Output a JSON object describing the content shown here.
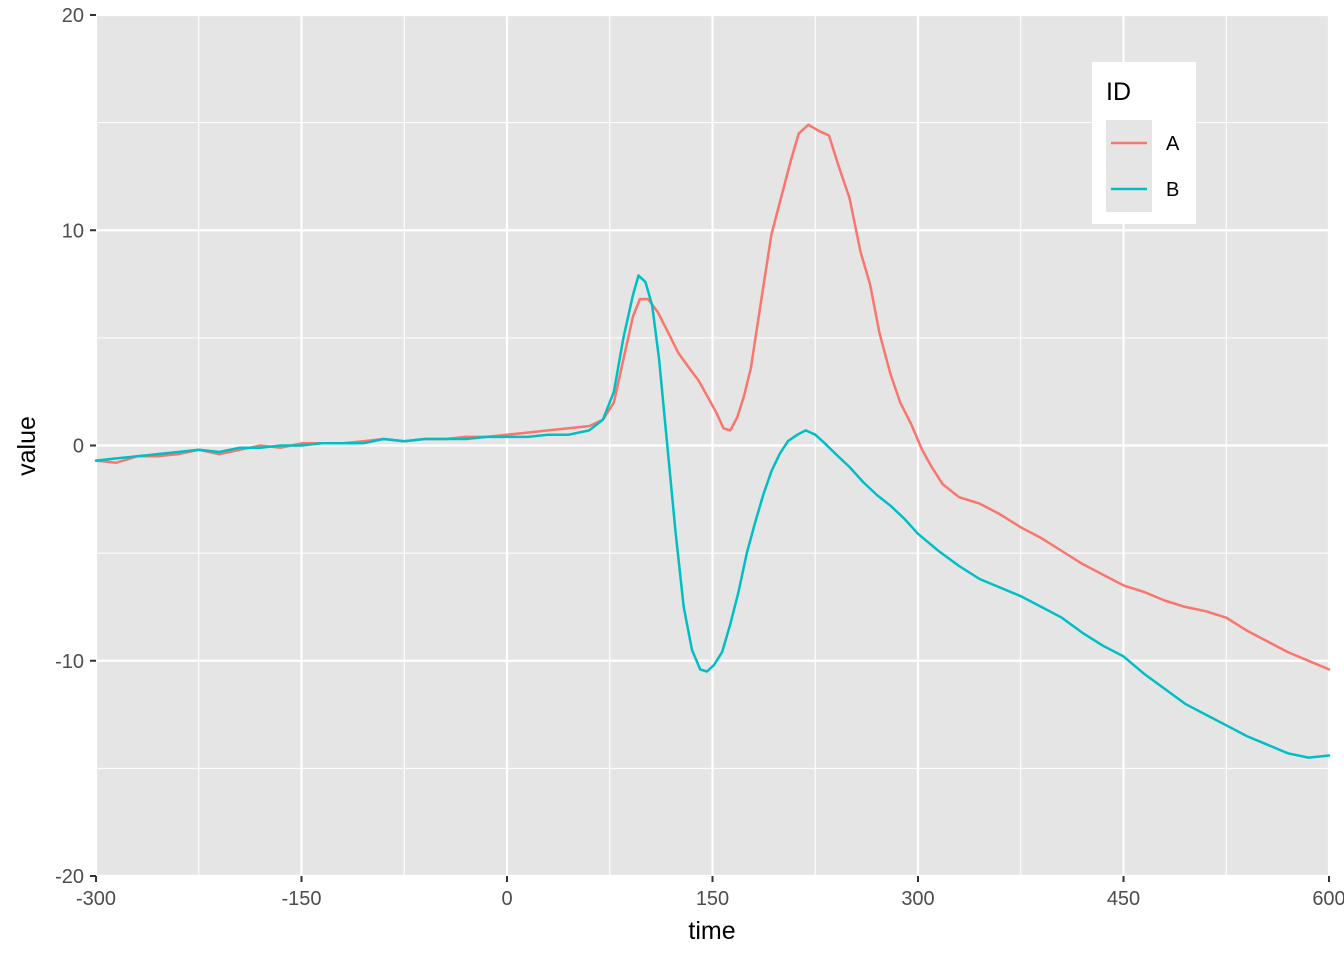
{
  "chart_data": {
    "type": "line",
    "xlabel": "time",
    "ylabel": "value",
    "xlim": [
      -300,
      600
    ],
    "ylim": [
      -20,
      20
    ],
    "x_ticks": [
      -300,
      -150,
      0,
      150,
      300,
      450,
      600
    ],
    "y_ticks": [
      -20,
      -10,
      0,
      10,
      20
    ],
    "x_tick_labels": [
      "-300",
      "-150",
      "0",
      "150",
      "300",
      "450",
      "600"
    ],
    "y_tick_labels": [
      "-20",
      "-10",
      "0",
      "10",
      "20"
    ],
    "grid": true,
    "legend": {
      "title": "ID",
      "position": "top-right",
      "entries": [
        "A",
        "B"
      ]
    },
    "series": [
      {
        "name": "A",
        "color": "#F8766D",
        "points": [
          [
            -300,
            -0.7
          ],
          [
            -285,
            -0.8
          ],
          [
            -270,
            -0.5
          ],
          [
            -255,
            -0.5
          ],
          [
            -240,
            -0.4
          ],
          [
            -225,
            -0.2
          ],
          [
            -210,
            -0.4
          ],
          [
            -195,
            -0.2
          ],
          [
            -180,
            0.0
          ],
          [
            -165,
            -0.1
          ],
          [
            -150,
            0.1
          ],
          [
            -135,
            0.1
          ],
          [
            -120,
            0.1
          ],
          [
            -105,
            0.2
          ],
          [
            -90,
            0.3
          ],
          [
            -75,
            0.2
          ],
          [
            -60,
            0.3
          ],
          [
            -45,
            0.3
          ],
          [
            -30,
            0.4
          ],
          [
            -15,
            0.4
          ],
          [
            0,
            0.5
          ],
          [
            15,
            0.6
          ],
          [
            30,
            0.7
          ],
          [
            45,
            0.8
          ],
          [
            60,
            0.9
          ],
          [
            70,
            1.2
          ],
          [
            78,
            2.0
          ],
          [
            85,
            4.0
          ],
          [
            92,
            6.0
          ],
          [
            97,
            6.8
          ],
          [
            103,
            6.8
          ],
          [
            110,
            6.2
          ],
          [
            118,
            5.2
          ],
          [
            125,
            4.3
          ],
          [
            133,
            3.6
          ],
          [
            140,
            3.0
          ],
          [
            147,
            2.2
          ],
          [
            153,
            1.5
          ],
          [
            158,
            0.8
          ],
          [
            163,
            0.7
          ],
          [
            168,
            1.3
          ],
          [
            173,
            2.3
          ],
          [
            178,
            3.6
          ],
          [
            185,
            6.5
          ],
          [
            193,
            9.8
          ],
          [
            200,
            11.5
          ],
          [
            207,
            13.2
          ],
          [
            213,
            14.5
          ],
          [
            220,
            14.9
          ],
          [
            228,
            14.6
          ],
          [
            235,
            14.4
          ],
          [
            242,
            13.0
          ],
          [
            250,
            11.5
          ],
          [
            258,
            9.0
          ],
          [
            265,
            7.5
          ],
          [
            272,
            5.2
          ],
          [
            280,
            3.3
          ],
          [
            287,
            2.0
          ],
          [
            295,
            1.0
          ],
          [
            303,
            -0.2
          ],
          [
            310,
            -1.0
          ],
          [
            318,
            -1.8
          ],
          [
            330,
            -2.4
          ],
          [
            345,
            -2.7
          ],
          [
            360,
            -3.2
          ],
          [
            375,
            -3.8
          ],
          [
            390,
            -4.3
          ],
          [
            405,
            -4.9
          ],
          [
            420,
            -5.5
          ],
          [
            435,
            -6.0
          ],
          [
            450,
            -6.5
          ],
          [
            465,
            -6.8
          ],
          [
            480,
            -7.2
          ],
          [
            495,
            -7.5
          ],
          [
            510,
            -7.7
          ],
          [
            525,
            -8.0
          ],
          [
            540,
            -8.6
          ],
          [
            555,
            -9.1
          ],
          [
            570,
            -9.6
          ],
          [
            585,
            -10.0
          ],
          [
            600,
            -10.4
          ]
        ]
      },
      {
        "name": "B",
        "color": "#00BFC4",
        "points": [
          [
            -300,
            -0.7
          ],
          [
            -285,
            -0.6
          ],
          [
            -270,
            -0.5
          ],
          [
            -255,
            -0.4
          ],
          [
            -240,
            -0.3
          ],
          [
            -225,
            -0.2
          ],
          [
            -210,
            -0.3
          ],
          [
            -195,
            -0.1
          ],
          [
            -180,
            -0.1
          ],
          [
            -165,
            0.0
          ],
          [
            -150,
            0.0
          ],
          [
            -135,
            0.1
          ],
          [
            -120,
            0.1
          ],
          [
            -105,
            0.1
          ],
          [
            -90,
            0.3
          ],
          [
            -75,
            0.2
          ],
          [
            -60,
            0.3
          ],
          [
            -45,
            0.3
          ],
          [
            -30,
            0.3
          ],
          [
            -15,
            0.4
          ],
          [
            0,
            0.4
          ],
          [
            15,
            0.4
          ],
          [
            30,
            0.5
          ],
          [
            45,
            0.5
          ],
          [
            60,
            0.7
          ],
          [
            70,
            1.2
          ],
          [
            78,
            2.5
          ],
          [
            85,
            5.0
          ],
          [
            92,
            7.0
          ],
          [
            96,
            7.9
          ],
          [
            101,
            7.6
          ],
          [
            106,
            6.5
          ],
          [
            111,
            4.0
          ],
          [
            117,
            0.0
          ],
          [
            123,
            -4.0
          ],
          [
            129,
            -7.5
          ],
          [
            135,
            -9.5
          ],
          [
            141,
            -10.4
          ],
          [
            146,
            -10.5
          ],
          [
            151,
            -10.2
          ],
          [
            157,
            -9.6
          ],
          [
            163,
            -8.3
          ],
          [
            169,
            -6.8
          ],
          [
            175,
            -5.0
          ],
          [
            181,
            -3.6
          ],
          [
            187,
            -2.3
          ],
          [
            193,
            -1.2
          ],
          [
            199,
            -0.4
          ],
          [
            205,
            0.2
          ],
          [
            212,
            0.5
          ],
          [
            218,
            0.7
          ],
          [
            225,
            0.5
          ],
          [
            232,
            0.1
          ],
          [
            240,
            -0.4
          ],
          [
            250,
            -1.0
          ],
          [
            260,
            -1.7
          ],
          [
            270,
            -2.3
          ],
          [
            280,
            -2.8
          ],
          [
            290,
            -3.4
          ],
          [
            300,
            -4.1
          ],
          [
            315,
            -4.9
          ],
          [
            330,
            -5.6
          ],
          [
            345,
            -6.2
          ],
          [
            360,
            -6.6
          ],
          [
            375,
            -7.0
          ],
          [
            390,
            -7.5
          ],
          [
            405,
            -8.0
          ],
          [
            420,
            -8.7
          ],
          [
            435,
            -9.3
          ],
          [
            450,
            -9.8
          ],
          [
            465,
            -10.6
          ],
          [
            480,
            -11.3
          ],
          [
            495,
            -12.0
          ],
          [
            510,
            -12.5
          ],
          [
            525,
            -13.0
          ],
          [
            540,
            -13.5
          ],
          [
            555,
            -13.9
          ],
          [
            570,
            -14.3
          ],
          [
            585,
            -14.5
          ],
          [
            600,
            -14.4
          ]
        ]
      }
    ]
  }
}
